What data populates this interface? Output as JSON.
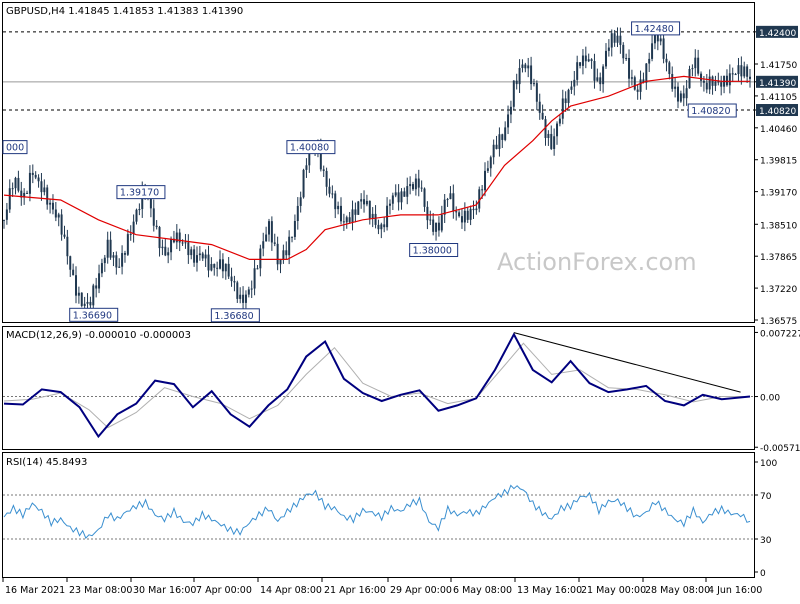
{
  "chart_data": [
    {
      "type": "candlestick",
      "header": "GBPUSD,H4  1.41845 1.41853 1.41383 1.41390",
      "watermark": "ActionForex.com",
      "ylim": [
        1.36575,
        1.4268
      ],
      "y_ticks": [
        {
          "v": 1.424,
          "label": "1.42400",
          "highlight": true
        },
        {
          "v": 1.4175,
          "label": "1.41750"
        },
        {
          "v": 1.4139,
          "label": "1.41390",
          "highlight": true
        },
        {
          "v": 1.41105,
          "label": "1.41105"
        },
        {
          "v": 1.4082,
          "label": "1.40820",
          "highlight": true
        },
        {
          "v": 1.4046,
          "label": "1.40460"
        },
        {
          "v": 1.39815,
          "label": "1.39815"
        },
        {
          "v": 1.3917,
          "label": "1.39170"
        },
        {
          "v": 1.3851,
          "label": "1.38510"
        },
        {
          "v": 1.37865,
          "label": "1.37865"
        },
        {
          "v": 1.3722,
          "label": "1.37220"
        },
        {
          "v": 1.36575,
          "label": "1.36575"
        }
      ],
      "hlines": [
        1.424,
        1.4139,
        1.4082
      ],
      "annotations": [
        {
          "t": 0,
          "v": 1.4008,
          "label": "000"
        },
        {
          "t": 14.5,
          "v": 1.3917,
          "label": "1.39170"
        },
        {
          "t": 9.5,
          "v": 1.3669,
          "label": "1.36690"
        },
        {
          "t": 24.5,
          "v": 1.3668,
          "label": "1.36680"
        },
        {
          "t": 32.5,
          "v": 1.4008,
          "label": "1.40080"
        },
        {
          "t": 45.5,
          "v": 1.38,
          "label": "1.38000"
        },
        {
          "t": 69,
          "v": 1.4248,
          "label": "1.42480"
        },
        {
          "t": 75,
          "v": 1.4082,
          "label": "1.40820"
        }
      ],
      "close_path": [
        [
          0,
          1.386
        ],
        [
          1,
          1.392
        ],
        [
          2,
          1.389
        ],
        [
          3,
          1.398
        ],
        [
          4,
          1.394
        ],
        [
          5,
          1.387
        ],
        [
          6,
          1.383
        ],
        [
          7,
          1.377
        ],
        [
          8,
          1.372
        ],
        [
          9,
          1.369
        ],
        [
          10,
          1.372
        ],
        [
          11,
          1.38
        ],
        [
          12,
          1.378
        ],
        [
          13,
          1.383
        ],
        [
          14,
          1.386
        ],
        [
          15,
          1.39
        ],
        [
          16,
          1.385
        ],
        [
          17,
          1.381
        ],
        [
          18,
          1.383
        ],
        [
          19,
          1.379
        ],
        [
          20,
          1.377
        ],
        [
          21,
          1.381
        ],
        [
          22,
          1.378
        ],
        [
          23,
          1.376
        ],
        [
          24,
          1.372
        ],
        [
          25,
          1.37
        ],
        [
          26,
          1.374
        ],
        [
          27,
          1.379
        ],
        [
          28,
          1.383
        ],
        [
          29,
          1.376
        ],
        [
          30,
          1.382
        ],
        [
          31,
          1.389
        ],
        [
          32,
          1.397
        ],
        [
          33,
          1.399
        ],
        [
          34,
          1.394
        ],
        [
          35,
          1.392
        ],
        [
          36,
          1.386
        ],
        [
          37,
          1.385
        ],
        [
          38,
          1.389
        ],
        [
          39,
          1.388
        ],
        [
          40,
          1.386
        ],
        [
          41,
          1.39
        ],
        [
          42,
          1.388
        ],
        [
          43,
          1.393
        ],
        [
          44,
          1.396
        ],
        [
          45,
          1.386
        ],
        [
          46,
          1.382
        ],
        [
          47,
          1.39
        ],
        [
          48,
          1.388
        ],
        [
          49,
          1.389
        ],
        [
          50,
          1.388
        ],
        [
          51,
          1.393
        ],
        [
          52,
          1.401
        ],
        [
          53,
          1.406
        ],
        [
          54,
          1.414
        ],
        [
          55,
          1.416
        ],
        [
          56,
          1.412
        ],
        [
          57,
          1.407
        ],
        [
          58,
          1.403
        ],
        [
          59,
          1.408
        ],
        [
          60,
          1.41
        ],
        [
          61,
          1.418
        ],
        [
          62,
          1.421
        ],
        [
          63,
          1.414
        ],
        [
          64,
          1.42
        ],
        [
          65,
          1.421
        ],
        [
          66,
          1.418
        ],
        [
          67,
          1.414
        ],
        [
          68,
          1.416
        ],
        [
          69,
          1.422
        ],
        [
          70,
          1.418
        ],
        [
          71,
          1.414
        ],
        [
          72,
          1.412
        ],
        [
          73,
          1.417
        ],
        [
          74,
          1.411
        ],
        [
          75,
          1.415
        ],
        [
          76,
          1.416
        ],
        [
          77,
          1.415
        ],
        [
          78,
          1.414
        ],
        [
          79,
          1.414
        ]
      ],
      "ma_path": [
        [
          0,
          1.391
        ],
        [
          6,
          1.39
        ],
        [
          10,
          1.386
        ],
        [
          14,
          1.383
        ],
        [
          18,
          1.382
        ],
        [
          22,
          1.381
        ],
        [
          26,
          1.378
        ],
        [
          30,
          1.378
        ],
        [
          32,
          1.38
        ],
        [
          34,
          1.384
        ],
        [
          38,
          1.386
        ],
        [
          42,
          1.387
        ],
        [
          46,
          1.387
        ],
        [
          50,
          1.389
        ],
        [
          53,
          1.397
        ],
        [
          56,
          1.402
        ],
        [
          58,
          1.406
        ],
        [
          60,
          1.409
        ],
        [
          64,
          1.411
        ],
        [
          68,
          1.414
        ],
        [
          72,
          1.415
        ],
        [
          76,
          1.414
        ],
        [
          79,
          1.414
        ]
      ],
      "t_max": 79
    },
    {
      "type": "line",
      "header": "MACD(12,26,9) -0.000010 -0.000003",
      "ylim": [
        -0.0058,
        0.0075
      ],
      "y_ticks": [
        {
          "v": 0.007227,
          "label": "0.007227"
        },
        {
          "v": 0.0,
          "label": "0.00"
        },
        {
          "v": -0.005714,
          "label": "-0.005714"
        }
      ],
      "series": [
        {
          "values": [
            [
              0,
              -0.0008
            ],
            [
              2,
              -0.0009
            ],
            [
              4,
              0.0008
            ],
            [
              6,
              0.0005
            ],
            [
              8,
              -0.0012
            ],
            [
              10,
              -0.0045
            ],
            [
              12,
              -0.002
            ],
            [
              14,
              -0.0008
            ],
            [
              16,
              0.0018
            ],
            [
              18,
              0.0014
            ],
            [
              20,
              -0.0012
            ],
            [
              22,
              0.0006
            ],
            [
              24,
              -0.002
            ],
            [
              26,
              -0.0034
            ],
            [
              28,
              -0.001
            ],
            [
              30,
              0.0008
            ],
            [
              32,
              0.0045
            ],
            [
              34,
              0.0062
            ],
            [
              36,
              0.002
            ],
            [
              38,
              0.0004
            ],
            [
              40,
              -0.0005
            ],
            [
              42,
              0.0002
            ],
            [
              44,
              0.0007
            ],
            [
              46,
              -0.0016
            ],
            [
              48,
              -0.001
            ],
            [
              50,
              -0.0002
            ],
            [
              52,
              0.003
            ],
            [
              54,
              0.007
            ],
            [
              56,
              0.003
            ],
            [
              58,
              0.0016
            ],
            [
              60,
              0.004
            ],
            [
              62,
              0.0015
            ],
            [
              64,
              0.0005
            ],
            [
              66,
              0.0008
            ],
            [
              68,
              0.0012
            ],
            [
              70,
              -0.0005
            ],
            [
              72,
              -0.001
            ],
            [
              74,
              0.0002
            ],
            [
              76,
              -0.0003
            ],
            [
              79,
              0.0
            ]
          ]
        },
        {
          "values": [
            [
              0,
              -0.0005
            ],
            [
              3,
              -0.0003
            ],
            [
              6,
              0.0004
            ],
            [
              9,
              -0.0015
            ],
            [
              11,
              -0.0035
            ],
            [
              14,
              -0.0018
            ],
            [
              17,
              0.001
            ],
            [
              20,
              0.0
            ],
            [
              23,
              -0.0008
            ],
            [
              26,
              -0.0025
            ],
            [
              29,
              -0.001
            ],
            [
              32,
              0.0025
            ],
            [
              35,
              0.0055
            ],
            [
              38,
              0.0015
            ],
            [
              41,
              0.0
            ],
            [
              44,
              0.0004
            ],
            [
              47,
              -0.0008
            ],
            [
              50,
              -0.0002
            ],
            [
              53,
              0.0035
            ],
            [
              55,
              0.006
            ],
            [
              58,
              0.0025
            ],
            [
              61,
              0.003
            ],
            [
              64,
              0.001
            ],
            [
              67,
              0.0008
            ],
            [
              70,
              0.0002
            ],
            [
              73,
              -0.0006
            ],
            [
              76,
              0.0
            ],
            [
              79,
              0.0
            ]
          ]
        }
      ],
      "trendline": [
        [
          54,
          0.0072
        ],
        [
          78,
          0.0005
        ]
      ]
    },
    {
      "type": "line",
      "header": "RSI(14) 45.8493",
      "ylim": [
        0,
        100
      ],
      "y_ticks": [
        {
          "v": 100,
          "label": "100"
        },
        {
          "v": 70,
          "label": "70"
        },
        {
          "v": 30,
          "label": "30"
        },
        {
          "v": 0,
          "label": "0"
        }
      ],
      "levels": [
        70,
        30
      ],
      "series": [
        {
          "values": [
            [
              0,
              50
            ],
            [
              1,
              58
            ],
            [
              2,
              52
            ],
            [
              3,
              62
            ],
            [
              4,
              55
            ],
            [
              5,
              45
            ],
            [
              6,
              48
            ],
            [
              7,
              40
            ],
            [
              8,
              36
            ],
            [
              9,
              32
            ],
            [
              10,
              38
            ],
            [
              11,
              52
            ],
            [
              12,
              48
            ],
            [
              13,
              55
            ],
            [
              14,
              60
            ],
            [
              15,
              63
            ],
            [
              16,
              52
            ],
            [
              17,
              48
            ],
            [
              18,
              55
            ],
            [
              19,
              46
            ],
            [
              20,
              44
            ],
            [
              21,
              52
            ],
            [
              22,
              48
            ],
            [
              23,
              43
            ],
            [
              24,
              38
            ],
            [
              25,
              36
            ],
            [
              26,
              45
            ],
            [
              27,
              52
            ],
            [
              28,
              58
            ],
            [
              29,
              46
            ],
            [
              30,
              55
            ],
            [
              31,
              62
            ],
            [
              32,
              70
            ],
            [
              33,
              72
            ],
            [
              34,
              60
            ],
            [
              35,
              58
            ],
            [
              36,
              50
            ],
            [
              37,
              48
            ],
            [
              38,
              56
            ],
            [
              39,
              54
            ],
            [
              40,
              50
            ],
            [
              41,
              58
            ],
            [
              42,
              55
            ],
            [
              43,
              62
            ],
            [
              44,
              65
            ],
            [
              45,
              46
            ],
            [
              46,
              40
            ],
            [
              47,
              57
            ],
            [
              48,
              52
            ],
            [
              49,
              55
            ],
            [
              50,
              53
            ],
            [
              51,
              60
            ],
            [
              52,
              68
            ],
            [
              53,
              72
            ],
            [
              54,
              78
            ],
            [
              55,
              75
            ],
            [
              56,
              62
            ],
            [
              57,
              54
            ],
            [
              58,
              48
            ],
            [
              59,
              58
            ],
            [
              60,
              60
            ],
            [
              61,
              68
            ],
            [
              62,
              70
            ],
            [
              63,
              56
            ],
            [
              64,
              64
            ],
            [
              65,
              65
            ],
            [
              66,
              58
            ],
            [
              67,
              50
            ],
            [
              68,
              54
            ],
            [
              69,
              64
            ],
            [
              70,
              56
            ],
            [
              71,
              48
            ],
            [
              72,
              44
            ],
            [
              73,
              56
            ],
            [
              74,
              45
            ],
            [
              75,
              54
            ],
            [
              76,
              57
            ],
            [
              77,
              53
            ],
            [
              78,
              52
            ],
            [
              79,
              46
            ]
          ]
        }
      ]
    }
  ],
  "x_axis": {
    "labels": [
      "16 Mar 2021",
      "23 Mar 08:00",
      "30 Mar 16:00",
      "7 Apr 00:00",
      "14 Apr 08:00",
      "21 Apr 16:00",
      "29 Apr 00:00",
      "6 May 08:00",
      "13 May 16:00",
      "21 May 00:00",
      "28 May 08:00",
      "4 Jun 16:00"
    ]
  },
  "colors": {
    "candle": "#203850",
    "ma": "#e00000",
    "macd": "#00007f",
    "signal": "#b0b0b0",
    "axis_text": "#000000",
    "highlight_bg": "#203850"
  }
}
